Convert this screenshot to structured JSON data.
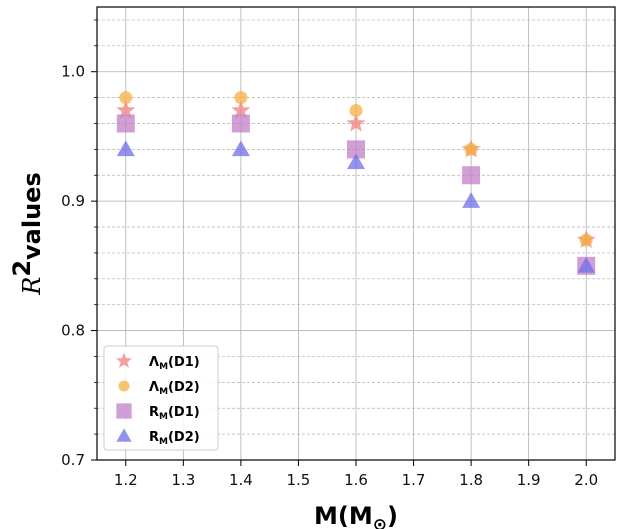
{
  "chart_data": {
    "type": "scatter",
    "xlabel": {
      "main": "M(M",
      "sub": "⊙",
      "close": ")"
    },
    "ylabel": {
      "symbol": "R",
      "sup": "2",
      "text": "values"
    },
    "xlim": [
      1.15,
      2.05
    ],
    "ylim": [
      0.7,
      1.05
    ],
    "xticks": [
      1.2,
      1.3,
      1.4,
      1.5,
      1.6,
      1.7,
      1.8,
      1.9,
      2.0
    ],
    "xtick_labels": [
      "1.2",
      "1.3",
      "1.4",
      "1.5",
      "1.6",
      "1.7",
      "1.8",
      "1.9",
      "2.0"
    ],
    "yticks": [
      0.7,
      0.8,
      0.9,
      1.0
    ],
    "ytick_labels": [
      "0.7",
      "0.8",
      "0.9",
      "1.0"
    ],
    "grid": true,
    "legend_position": "lower-left",
    "series": [
      {
        "label_main": "Λ",
        "label_sub": "M",
        "label_tag": "(D1)",
        "marker": "star",
        "color": "#f08080",
        "x": [
          1.2,
          1.4,
          1.6,
          1.8,
          2.0
        ],
        "y": [
          0.97,
          0.97,
          0.96,
          0.94,
          0.87
        ]
      },
      {
        "label_main": "Λ",
        "label_sub": "M",
        "label_tag": "(D2)",
        "marker": "circle",
        "color": "#f5b042",
        "x": [
          1.2,
          1.4,
          1.6,
          1.8,
          2.0
        ],
        "y": [
          0.98,
          0.98,
          0.97,
          0.94,
          0.87
        ]
      },
      {
        "label_main": "R",
        "label_sub": "M",
        "label_tag": "(D1)",
        "marker": "square",
        "color": "#c17ec7",
        "x": [
          1.2,
          1.4,
          1.6,
          1.8,
          2.0
        ],
        "y": [
          0.96,
          0.96,
          0.94,
          0.92,
          0.85
        ]
      },
      {
        "label_main": "R",
        "label_sub": "M",
        "label_tag": "(D2)",
        "marker": "triangle",
        "color": "#6f6fe8",
        "x": [
          1.2,
          1.4,
          1.6,
          1.8,
          2.0
        ],
        "y": [
          0.94,
          0.94,
          0.93,
          0.9,
          0.85
        ]
      }
    ]
  }
}
